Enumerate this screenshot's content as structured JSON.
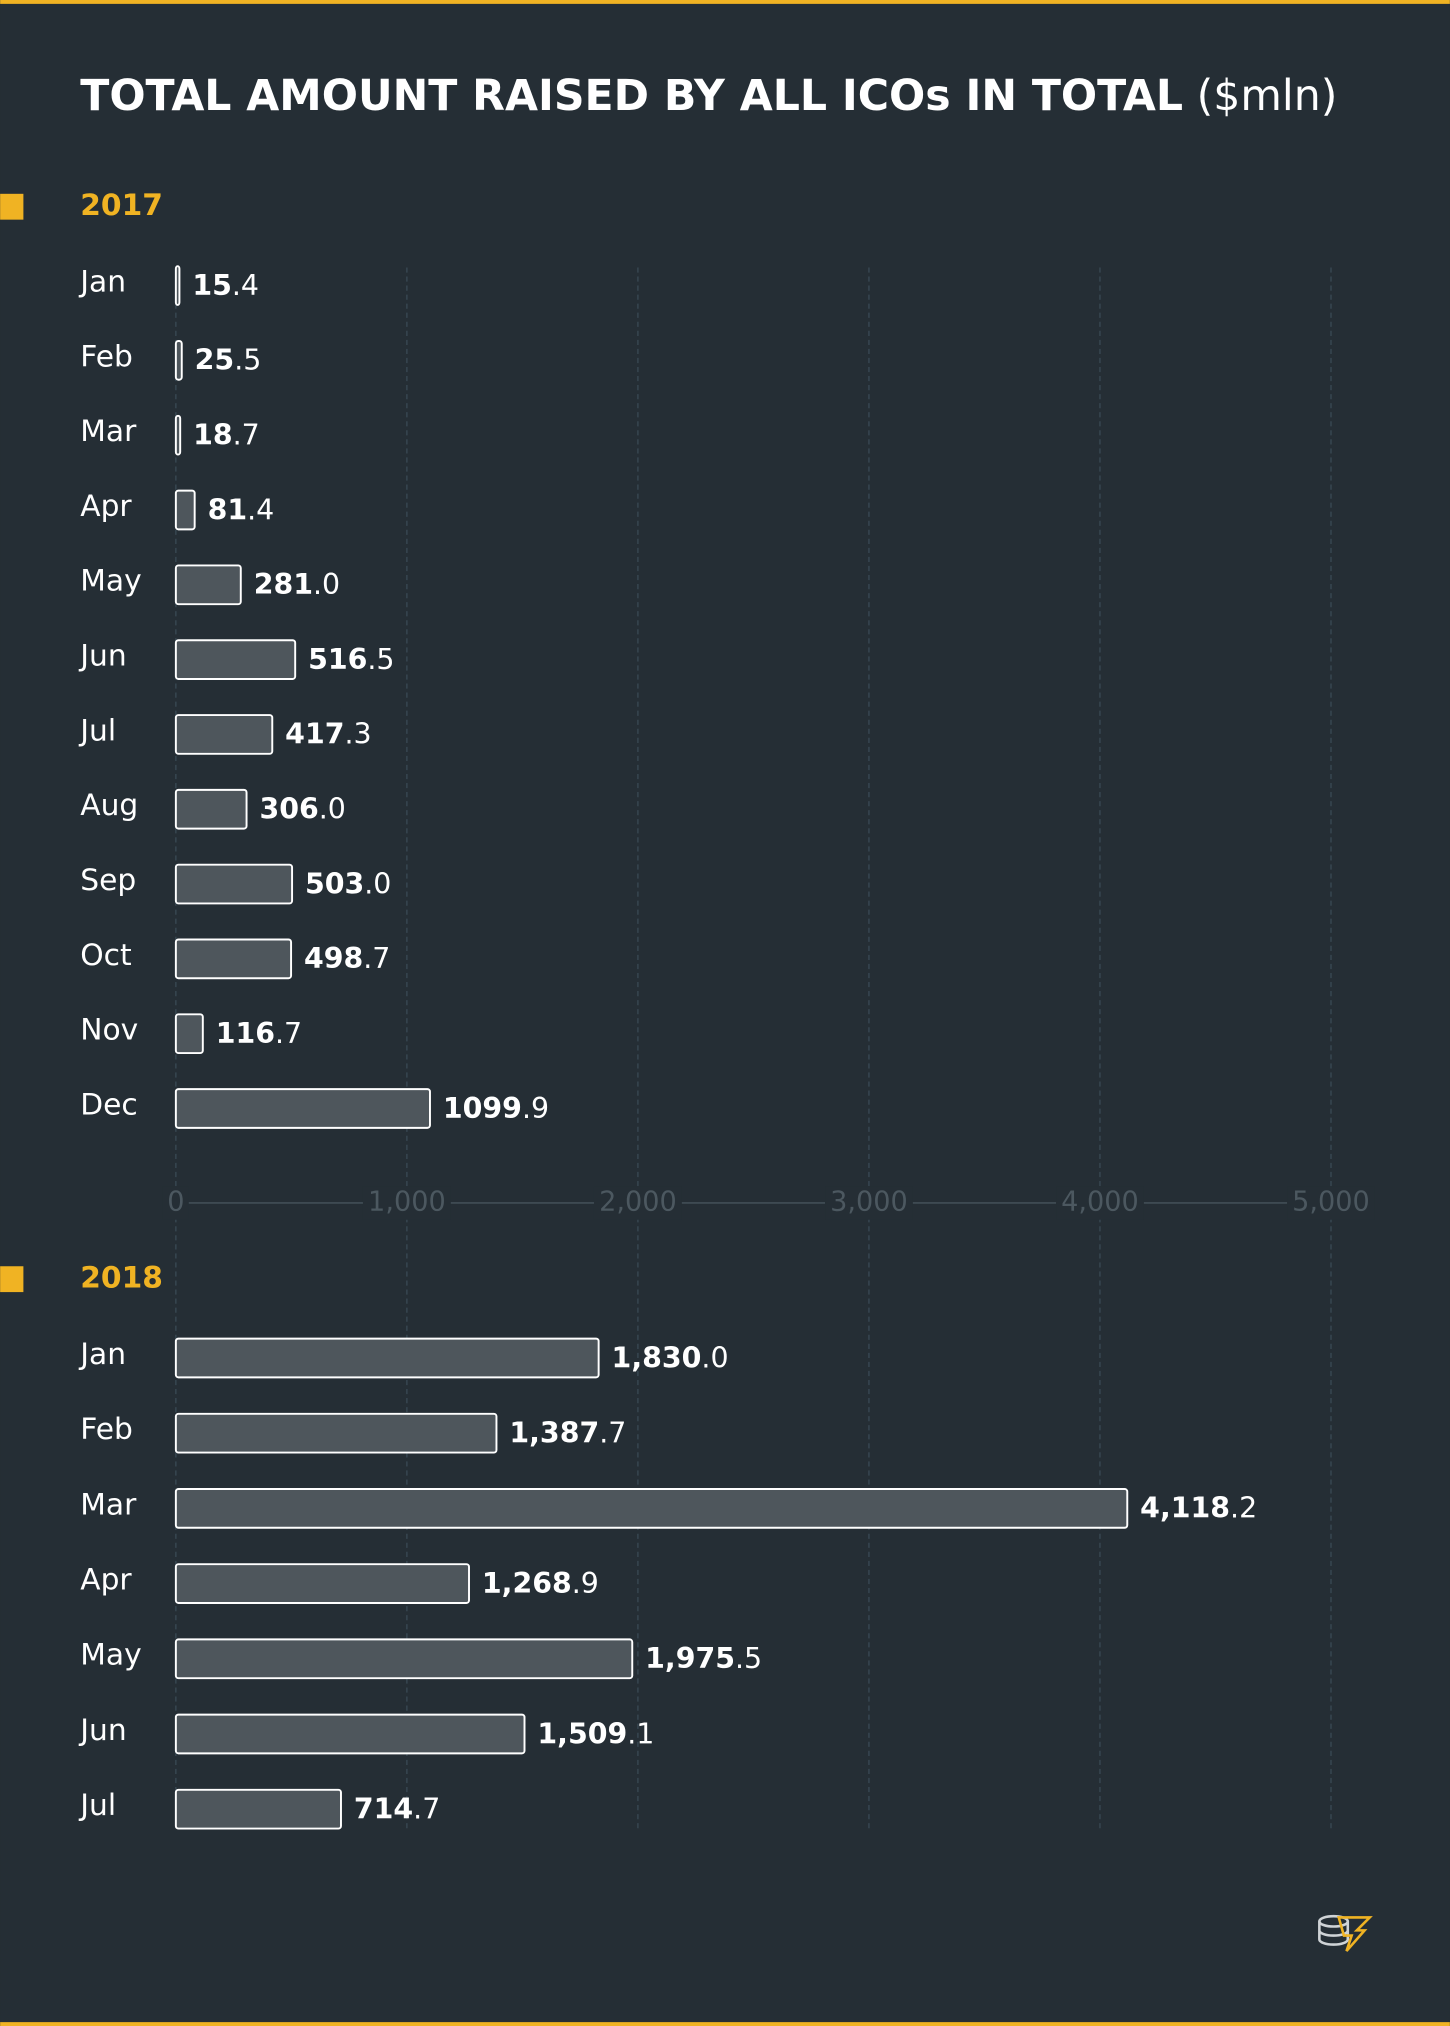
{
  "title": "TOTAL AMOUNT RAISED BY ALL ICOs IN TOTAL",
  "unit": "($mln)",
  "chart_data": [
    {
      "type": "bar",
      "orientation": "horizontal",
      "title": "2017",
      "color": "#4e565c",
      "categories": [
        "Jan",
        "Feb",
        "Mar",
        "Apr",
        "May",
        "Jun",
        "Jul",
        "Aug",
        "Sep",
        "Oct",
        "Nov",
        "Dec"
      ],
      "values": [
        15.4,
        25.5,
        18.7,
        81.4,
        281.0,
        516.5,
        417.3,
        306.0,
        503.0,
        498.7,
        116.7,
        1099.9
      ],
      "value_labels": [
        "15.4",
        "25.5",
        "18.7",
        "81.4",
        "281.0",
        "516.5",
        "417.3",
        "306.0",
        "503.0",
        "498.7",
        "116.7",
        "1099.9"
      ],
      "xlim": [
        0,
        5000
      ],
      "xticks": [
        0,
        {
          "value": 1000,
          "label": "1,000"
        },
        {
          "value": 2000,
          "label": "2,000"
        },
        {
          "value": 3000,
          "label": "3,000"
        },
        {
          "value": 4000,
          "label": "4,000"
        },
        {
          "value": 5000,
          "label": "5,000"
        }
      ],
      "grid": true
    },
    {
      "type": "bar",
      "orientation": "horizontal",
      "title": "2018",
      "color": "#4e565c",
      "categories": [
        "Jan",
        "Feb",
        "Mar",
        "Apr",
        "May",
        "Jun",
        "Jul"
      ],
      "values": [
        1830.0,
        1387.7,
        4118.2,
        1268.9,
        1975.5,
        1509.1,
        714.7
      ],
      "value_labels": [
        "1,830.0",
        "1,387.7",
        "4,118.2",
        "1,268.9",
        "1,975.5",
        "1,509.1",
        "714.7"
      ],
      "xlim": [
        0,
        5000
      ],
      "grid": true
    }
  ]
}
